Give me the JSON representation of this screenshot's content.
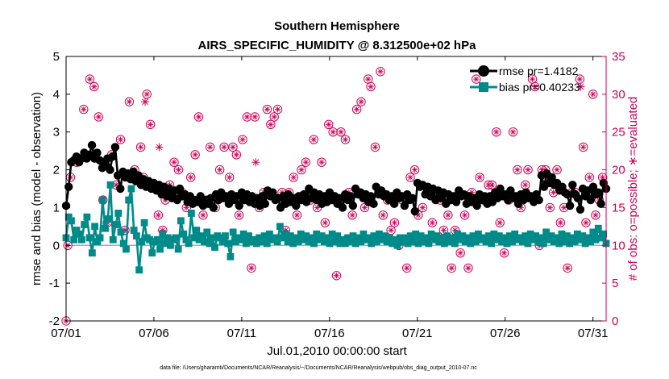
{
  "chart_data": {
    "type": "line",
    "title": "Southern Hemisphere",
    "subtitle": "AIRS_SPECIFIC_HUMIDITY @ 8.312500e+02 hPa",
    "xlabel": "Jul.01,2010 00:00:00 start",
    "ylabel_left": "rmse and bias (model - observation)",
    "ylabel_right": "# of obs: o=possible; ∗=evaluated",
    "footnote": "data file: /Users/gharamti/Documents/NCAR/Reanalysis/~/Documents/NCAR/Reanalysis/webpub/obs_diag_output_2010-07.nc",
    "x_ticks": [
      "07/01",
      "07/06",
      "07/11",
      "07/16",
      "07/21",
      "07/26",
      "07/31"
    ],
    "x_tick_days": [
      0,
      5,
      10,
      15,
      20,
      25,
      30
    ],
    "xlim_days": [
      0,
      30.75
    ],
    "ylim_left": [
      -2,
      5
    ],
    "y_ticks_left": [
      "-2",
      "-1",
      "0",
      "1",
      "2",
      "3",
      "4",
      "5"
    ],
    "ylim_right": [
      0,
      35
    ],
    "y_ticks_right": [
      "0",
      "5",
      "10",
      "15",
      "20",
      "25",
      "30",
      "35"
    ],
    "zero_line": true,
    "legend_position": "top-right",
    "colors": {
      "rmse": "#000000",
      "bias": "#008b8b",
      "obs": "#cc0055",
      "zero_line": "#aaaaaa"
    },
    "series": [
      {
        "name": "rmse pr=1.4182",
        "marker": "circle",
        "values": [
          1.05,
          1.55,
          2.2,
          2.25,
          2.35,
          2.2,
          2.3,
          2.45,
          2.3,
          2.4,
          2.65,
          2.3,
          2.45,
          2.25,
          2.05,
          2.15,
          2.3,
          2.0,
          2.35,
          2.6,
          1.85,
          1.5,
          1.95,
          1.8,
          1.9,
          1.75,
          1.95,
          1.7,
          1.85,
          1.6,
          1.75,
          1.55,
          1.7,
          1.5,
          1.65,
          1.45,
          1.6,
          1.35,
          1.55,
          1.3,
          1.5,
          1.25,
          1.45,
          1.2,
          1.5,
          1.3,
          1.35,
          1.15,
          1.3,
          1.1,
          1.2,
          1.15,
          1.3,
          1.05,
          1.2,
          1.1,
          1.25,
          1.0,
          1.35,
          1.2,
          1.4,
          1.25,
          1.3,
          1.1,
          1.35,
          1.2,
          1.3,
          1.05,
          1.4,
          1.2,
          1.35,
          1.15,
          1.3,
          1.1,
          1.25,
          1.05,
          1.3,
          1.1,
          1.45,
          1.3,
          1.4,
          1.2,
          1.25,
          1.0,
          1.3,
          1.1,
          1.35,
          1.15,
          1.25,
          1.05,
          1.3,
          1.2,
          1.35,
          1.15,
          1.5,
          1.25,
          1.4,
          1.2,
          1.35,
          1.1,
          1.3,
          1.15,
          1.4,
          1.2,
          1.3,
          1.1,
          1.25,
          1.0,
          1.35,
          1.2,
          1.3,
          1.05,
          1.5,
          1.35,
          1.4,
          1.25,
          1.35,
          1.15,
          1.3,
          1.1,
          1.55,
          1.35,
          1.45,
          1.3,
          1.35,
          1.2,
          1.3,
          1.1,
          1.4,
          1.25,
          1.3,
          1.05,
          1.35,
          1.2,
          1.25,
          0.9,
          1.65,
          1.55,
          1.6,
          1.35,
          1.55,
          1.3,
          1.5,
          1.2,
          1.45,
          1.25,
          1.4,
          1.1,
          1.35,
          1.2,
          1.3,
          1.15,
          1.45,
          1.3,
          1.35,
          1.1,
          1.3,
          1.15,
          1.25,
          1.05,
          1.35,
          1.2,
          1.3,
          1.1,
          1.3,
          1.15,
          1.4,
          1.25,
          1.5,
          1.3,
          1.35,
          1.2,
          1.45,
          1.25,
          1.3,
          1.1,
          1.35,
          1.2,
          1.4,
          1.25,
          1.3,
          1.15,
          1.35,
          1.2,
          1.85,
          1.55,
          1.9,
          1.65,
          1.8,
          1.6,
          1.65,
          1.45,
          1.55,
          1.4,
          1.35,
          1.05,
          1.6,
          1.35,
          1.25,
          0.95,
          1.5,
          1.3,
          1.45,
          1.2,
          1.55,
          1.35,
          1.4,
          1.1,
          1.65,
          1.5
        ]
      },
      {
        "name": "bias pr=0.40233",
        "marker": "square",
        "values": [
          0.2,
          0.75,
          0.65,
          0.15,
          0.4,
          0.3,
          0.15,
          0.55,
          0.75,
          0.2,
          -0.2,
          0.5,
          0.1,
          0.2,
          1.2,
          0.45,
          0.7,
          1.6,
          0.15,
          0.55,
          0.85,
          0.35,
          0.05,
          -0.1,
          1.2,
          1.5,
          0.4,
          0.25,
          -0.65,
          0.1,
          0.6,
          0.2,
          0.15,
          -0.2,
          0.1,
          0.15,
          -0.1,
          0.3,
          0.05,
          0.2,
          0.0,
          0.15,
          0.2,
          -0.1,
          0.65,
          0.3,
          0.15,
          0.05,
          0.85,
          0.2,
          0.4,
          0.15,
          0.25,
          0.1,
          0.35,
          0.05,
          0.2,
          -0.05,
          0.25,
          0.2,
          0.1,
          0.25,
          0.05,
          -0.3,
          0.35,
          0.1,
          0.2,
          0.15,
          0.3,
          0.05,
          0.25,
          0.1,
          0.15,
          0.05,
          0.2,
          0.1,
          0.25,
          0.05,
          0.3,
          0.15,
          0.2,
          0.1,
          0.5,
          0.2,
          0.3,
          0.1,
          0.25,
          0.05,
          0.2,
          0.1,
          0.3,
          0.15,
          0.25,
          0.1,
          0.2,
          0.05,
          0.3,
          0.15,
          0.25,
          0.1,
          0.2,
          0.05,
          0.3,
          0.1,
          0.25,
          0.05,
          0.15,
          0.05,
          0.2,
          0.1,
          0.25,
          0.05,
          0.2,
          0.1,
          0.3,
          0.15,
          0.2,
          0.05,
          0.25,
          0.1,
          0.3,
          0.15,
          0.25,
          0.1,
          0.2,
          0.05,
          0.15,
          0.0,
          0.2,
          0.1,
          0.2,
          0.05,
          0.25,
          0.1,
          0.3,
          0.05,
          0.25,
          0.1,
          0.2,
          0.05,
          0.3,
          0.15,
          0.25,
          0.1,
          0.2,
          0.05,
          0.25,
          0.1,
          0.2,
          0.05,
          0.3,
          0.15,
          0.25,
          0.1,
          0.2,
          0.05,
          0.25,
          0.1,
          0.3,
          0.15,
          0.2,
          0.1,
          0.25,
          0.05,
          0.3,
          0.15,
          0.25,
          0.1,
          0.2,
          0.05,
          0.25,
          0.1,
          0.3,
          0.15,
          0.2,
          0.1,
          0.25,
          0.05,
          0.3,
          0.15,
          0.25,
          0.1,
          0.2,
          0.05,
          0.35,
          0.15,
          0.25,
          0.1,
          0.2,
          0.05,
          0.3,
          0.1,
          0.25,
          0.05,
          0.2,
          0.1,
          0.3,
          0.15,
          0.25,
          0.05,
          0.2,
          0.1,
          0.35,
          0.15,
          0.45,
          0.2,
          0.3,
          0.05
        ]
      }
    ],
    "obs_possible": [
      [
        0.0,
        0
      ],
      [
        0.1,
        10
      ],
      [
        0.25,
        19
      ],
      [
        0.6,
        21
      ],
      [
        1.0,
        28
      ],
      [
        1.35,
        32
      ],
      [
        1.6,
        31
      ],
      [
        1.85,
        27
      ],
      [
        2.1,
        16
      ],
      [
        2.35,
        13
      ],
      [
        2.6,
        22
      ],
      [
        2.85,
        18
      ],
      [
        3.1,
        24
      ],
      [
        3.35,
        12
      ],
      [
        3.6,
        29
      ],
      [
        3.9,
        20
      ],
      [
        4.25,
        23
      ],
      [
        4.4,
        19
      ],
      [
        4.6,
        30
      ],
      [
        4.8,
        26
      ],
      [
        5.0,
        18
      ],
      [
        5.25,
        14
      ],
      [
        5.5,
        12
      ],
      [
        5.65,
        16
      ],
      [
        5.9,
        18
      ],
      [
        6.15,
        21
      ],
      [
        6.4,
        20
      ],
      [
        6.6,
        17
      ],
      [
        6.85,
        15
      ],
      [
        7.1,
        19
      ],
      [
        7.35,
        22
      ],
      [
        7.55,
        27
      ],
      [
        7.8,
        14
      ],
      [
        8.0,
        16
      ],
      [
        8.2,
        23
      ],
      [
        8.5,
        15
      ],
      [
        8.75,
        20
      ],
      [
        9.0,
        23
      ],
      [
        9.3,
        19
      ],
      [
        9.5,
        23
      ],
      [
        9.7,
        22
      ],
      [
        9.85,
        14
      ],
      [
        10.05,
        24
      ],
      [
        10.3,
        27
      ],
      [
        10.55,
        7
      ],
      [
        10.75,
        27
      ],
      [
        11.0,
        15
      ],
      [
        11.25,
        17
      ],
      [
        11.45,
        28
      ],
      [
        11.65,
        26
      ],
      [
        11.85,
        27
      ],
      [
        12.05,
        28
      ],
      [
        12.3,
        17
      ],
      [
        12.5,
        12
      ],
      [
        12.7,
        17
      ],
      [
        12.95,
        19
      ],
      [
        13.15,
        14
      ],
      [
        13.4,
        20
      ],
      [
        13.65,
        21
      ],
      [
        13.9,
        16
      ],
      [
        14.1,
        24
      ],
      [
        14.3,
        15
      ],
      [
        14.55,
        21
      ],
      [
        14.75,
        13
      ],
      [
        14.95,
        26
      ],
      [
        15.2,
        25
      ],
      [
        15.4,
        6
      ],
      [
        15.65,
        25
      ],
      [
        15.9,
        24
      ],
      [
        16.1,
        17
      ],
      [
        16.3,
        14
      ],
      [
        16.55,
        28
      ],
      [
        16.8,
        29
      ],
      [
        17.0,
        15
      ],
      [
        17.2,
        32
      ],
      [
        17.35,
        31
      ],
      [
        17.6,
        23
      ],
      [
        17.9,
        33
      ],
      [
        18.05,
        14
      ],
      [
        18.3,
        16
      ],
      [
        18.5,
        12
      ],
      [
        18.7,
        13
      ],
      [
        18.95,
        10
      ],
      [
        19.15,
        16
      ],
      [
        19.4,
        7
      ],
      [
        19.6,
        19
      ],
      [
        19.85,
        20
      ],
      [
        20.05,
        14
      ],
      [
        20.3,
        15
      ],
      [
        20.6,
        17
      ],
      [
        20.85,
        13
      ],
      [
        21.05,
        17
      ],
      [
        21.3,
        16
      ],
      [
        21.5,
        12
      ],
      [
        21.75,
        14
      ],
      [
        21.95,
        7
      ],
      [
        22.15,
        12
      ],
      [
        22.45,
        9
      ],
      [
        22.7,
        14
      ],
      [
        22.9,
        7
      ],
      [
        23.1,
        17
      ],
      [
        23.35,
        32
      ],
      [
        23.55,
        19
      ],
      [
        23.8,
        16
      ],
      [
        24.05,
        18
      ],
      [
        24.25,
        18
      ],
      [
        24.5,
        25
      ],
      [
        24.7,
        13
      ],
      [
        24.95,
        9
      ],
      [
        25.2,
        16
      ],
      [
        25.45,
        25
      ],
      [
        25.7,
        20
      ],
      [
        25.9,
        15
      ],
      [
        26.15,
        18
      ],
      [
        26.3,
        20
      ],
      [
        26.55,
        32
      ],
      [
        26.7,
        31
      ],
      [
        26.95,
        10
      ],
      [
        27.1,
        20
      ],
      [
        27.3,
        20
      ],
      [
        27.55,
        15
      ],
      [
        27.75,
        17
      ],
      [
        27.95,
        20
      ],
      [
        28.15,
        13
      ],
      [
        28.35,
        15
      ],
      [
        28.55,
        7
      ],
      [
        28.8,
        17
      ],
      [
        29.0,
        17
      ],
      [
        29.25,
        32
      ],
      [
        29.45,
        23
      ],
      [
        29.6,
        13
      ],
      [
        29.8,
        19
      ],
      [
        30.0,
        30
      ],
      [
        30.15,
        14
      ],
      [
        30.35,
        16
      ],
      [
        30.55,
        19
      ]
    ],
    "obs_evaluated": [
      [
        4.5,
        29
      ],
      [
        5.3,
        23
      ],
      [
        10.8,
        21
      ],
      [
        29.3,
        31
      ]
    ]
  }
}
